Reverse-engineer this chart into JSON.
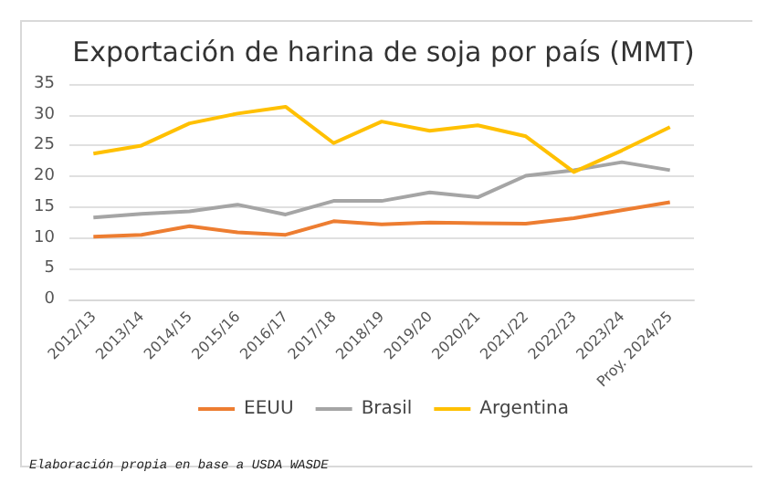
{
  "chart_data": {
    "type": "line",
    "title": "Exportación de harina de soja por país (MMT)",
    "categories": [
      "2012/13",
      "2013/14",
      "2014/15",
      "2015/16",
      "2016/17",
      "2017/18",
      "2018/19",
      "2019/20",
      "2020/21",
      "2021/22",
      "2022/23",
      "2023/24",
      "Proy. 2024/25"
    ],
    "series": [
      {
        "name": "EEUU",
        "color": "#ed7d31",
        "values": [
          10.2,
          10.5,
          11.9,
          10.9,
          10.5,
          12.7,
          12.2,
          12.5,
          12.4,
          12.3,
          13.2,
          14.5,
          15.8
        ]
      },
      {
        "name": "Brasil",
        "color": "#a5a5a5",
        "values": [
          13.3,
          13.9,
          14.3,
          15.4,
          13.8,
          16.0,
          16.0,
          17.4,
          16.6,
          20.1,
          21.0,
          22.3,
          21.0
        ]
      },
      {
        "name": "Argentina",
        "color": "#ffc000",
        "values": [
          23.7,
          25.0,
          28.6,
          30.2,
          31.3,
          25.4,
          28.9,
          27.4,
          28.3,
          26.5,
          20.7,
          24.2,
          28.0
        ]
      }
    ],
    "ylim": [
      0,
      35
    ],
    "yticks": [
      0,
      5,
      10,
      15,
      20,
      25,
      30,
      35
    ],
    "grid": "y",
    "legend": "bottom",
    "marker": "none",
    "line_style": "solid",
    "annotations": [
      "Elaboración propia en base a USDA WASDE"
    ]
  }
}
